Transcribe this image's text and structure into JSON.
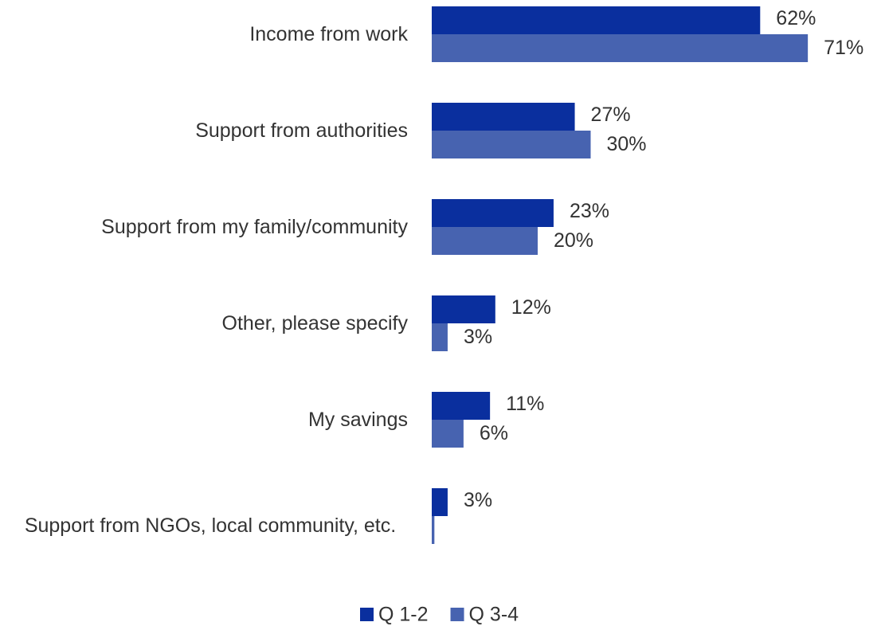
{
  "chart_data": {
    "type": "bar",
    "orientation": "horizontal",
    "categories": [
      "Income from work",
      "Support from authorities",
      "Support from my family/community",
      "Other, please specify",
      "My savings",
      "Support from NGOs, local community, etc."
    ],
    "series": [
      {
        "name": "Q 1-2",
        "color": "#0a2f9e",
        "values": [
          62,
          27,
          23,
          12,
          11,
          3
        ],
        "value_labels": [
          "62%",
          "27%",
          "23%",
          "12%",
          "11%",
          "3%"
        ]
      },
      {
        "name": "Q 3-4",
        "color": "#4763b0",
        "values": [
          71,
          30,
          20,
          3,
          6,
          0.5
        ],
        "value_labels": [
          "71%",
          "30%",
          "20%",
          "3%",
          "6%",
          null
        ]
      }
    ]
  }
}
